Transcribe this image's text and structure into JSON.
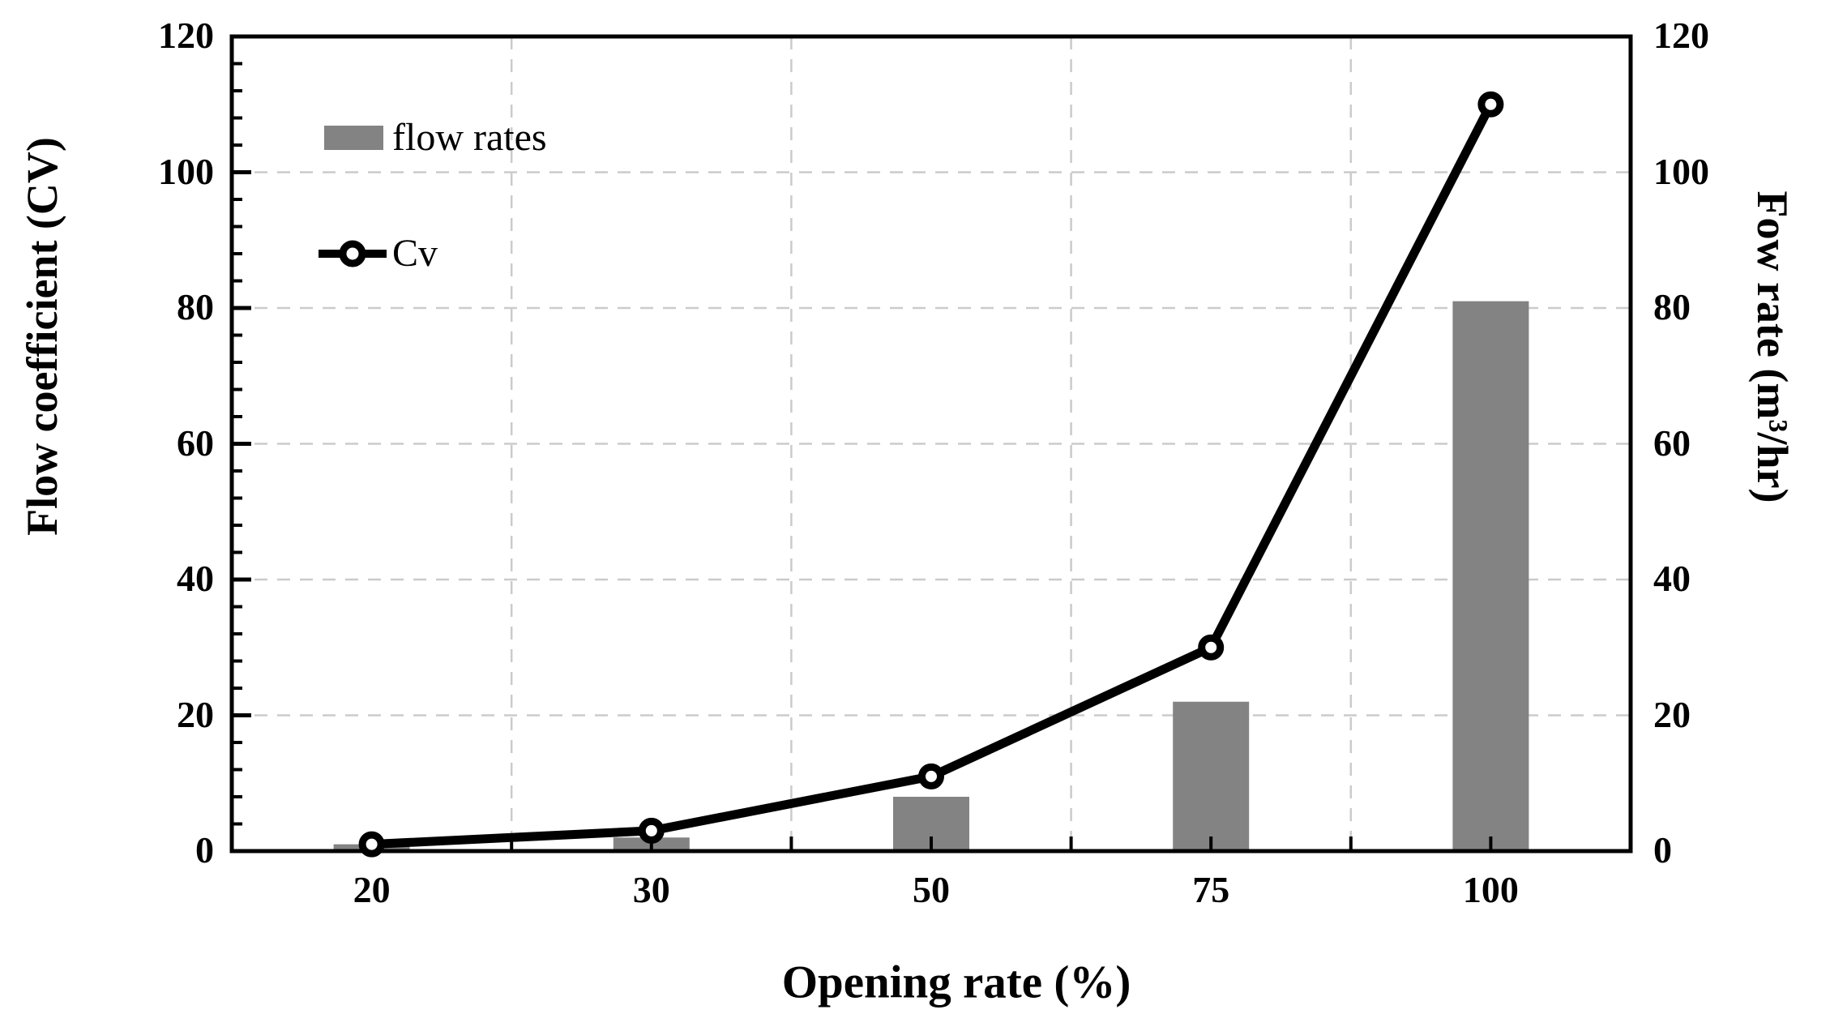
{
  "figure": {
    "x_axis_title": "Opening rate (%)",
    "y_axis_left_title": "Flow coefficient (CV)",
    "y_axis_right_title": "Fow rate (m³/hr)"
  },
  "chart_data": {
    "type": "combo",
    "subtypes": [
      "bar",
      "line"
    ],
    "categories": [
      "20",
      "30",
      "50",
      "75",
      "100"
    ],
    "series": [
      {
        "name": "flow rates",
        "type": "bar",
        "axis": "right",
        "values": [
          1,
          2,
          8,
          22,
          81
        ]
      },
      {
        "name": "Cv",
        "type": "line",
        "axis": "left",
        "values": [
          1,
          3,
          11,
          30,
          110
        ]
      }
    ],
    "xlabel": "Opening rate (%)",
    "ylabel_left": "Flow coefficient (CV)",
    "ylabel_right": "Fow rate (m³/hr)",
    "ylim": [
      0,
      120
    ],
    "y_ticks": [
      0,
      20,
      40,
      60,
      80,
      100,
      120
    ],
    "y_minor_tick_step": 4,
    "grid": {
      "horizontal": true,
      "vertical": true,
      "line_style": "dashed",
      "vertical_positions": "category-boundaries"
    },
    "legend": {
      "position": "upper-left-inside",
      "entries": [
        "flow rates",
        "Cv"
      ]
    },
    "colors": {
      "bar": "#838383",
      "line": "#000000",
      "marker_fill": "#ffffff",
      "grid": "#cbcbcb",
      "frame": "#000000",
      "text": "#000000"
    }
  }
}
